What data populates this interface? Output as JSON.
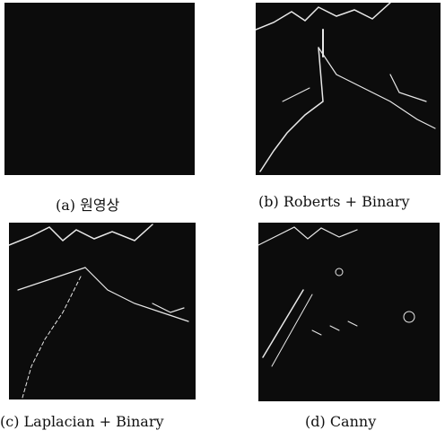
{
  "panels": [
    {
      "caption": "(a) 원영상"
    },
    {
      "caption": "(b) Roberts + Binary"
    },
    {
      "caption": "(c) Laplacian + Binary"
    },
    {
      "caption": "(d) Canny"
    }
  ]
}
